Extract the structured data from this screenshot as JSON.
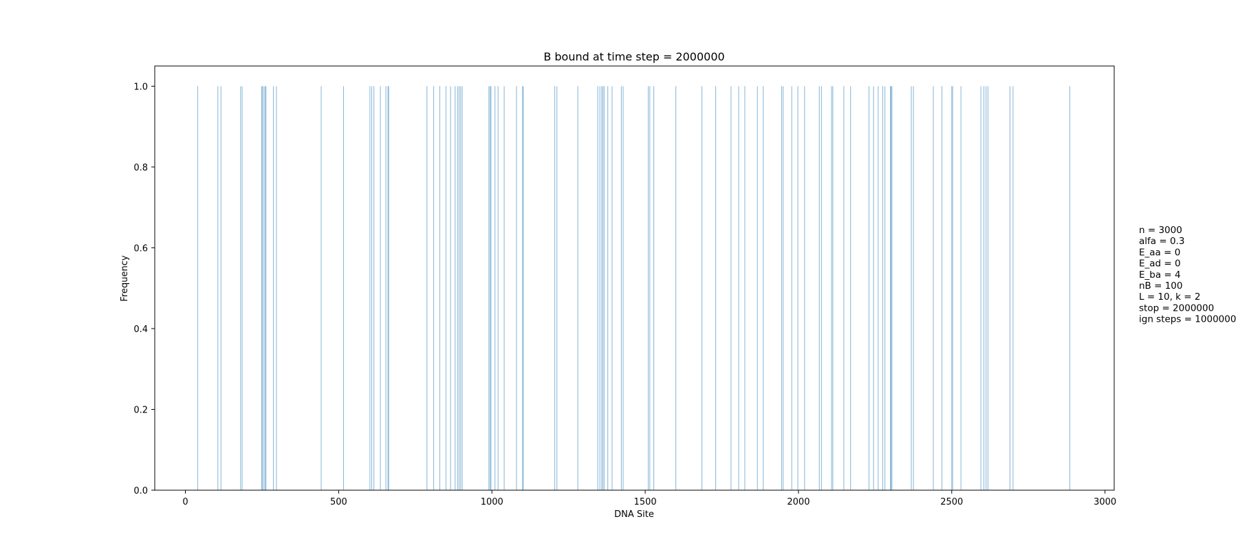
{
  "chart_data": {
    "type": "bar",
    "title": "B bound at time step = 2000000",
    "xlabel": "DNA Site",
    "ylabel": "Frequency",
    "xlim": [
      -100,
      3030
    ],
    "ylim": [
      0.0,
      1.05
    ],
    "xticks": [
      0,
      500,
      1000,
      1500,
      2000,
      2500,
      3000
    ],
    "yticks": [
      0.0,
      0.2,
      0.4,
      0.6,
      0.8,
      1.0
    ],
    "ytick_labels": [
      "0.0",
      "0.2",
      "0.4",
      "0.6",
      "0.8",
      "1.0"
    ],
    "bar_color": "#1f77b4",
    "grid": false,
    "bound_sites": [
      40,
      106,
      116,
      180,
      185,
      249,
      251,
      256,
      260,
      263,
      287,
      297,
      443,
      516,
      602,
      608,
      615,
      636,
      654,
      661,
      663,
      788,
      810,
      830,
      850,
      865,
      880,
      888,
      893,
      898,
      903,
      990,
      994,
      997,
      1010,
      1020,
      1040,
      1080,
      1100,
      1102,
      1205,
      1212,
      1280,
      1345,
      1352,
      1358,
      1362,
      1366,
      1378,
      1392,
      1422,
      1428,
      1510,
      1515,
      1528,
      1600,
      1685,
      1730,
      1780,
      1805,
      1825,
      1866,
      1885,
      1945,
      1950,
      1978,
      1998,
      2020,
      2068,
      2075,
      2108,
      2112,
      2148,
      2170,
      2230,
      2245,
      2260,
      2275,
      2282,
      2300,
      2302,
      2305,
      2368,
      2375,
      2440,
      2468,
      2500,
      2503,
      2530,
      2595,
      2605,
      2612,
      2618,
      2690,
      2700,
      2885
    ],
    "bound_frequency": 1.0
  },
  "params": [
    "n = 3000",
    "alfa = 0.3",
    "E_aa = 0",
    "E_ad = 0",
    "E_ba = 4",
    "nB = 100",
    "L = 10, k = 2",
    "stop = 2000000",
    "ign steps = 1000000"
  ]
}
